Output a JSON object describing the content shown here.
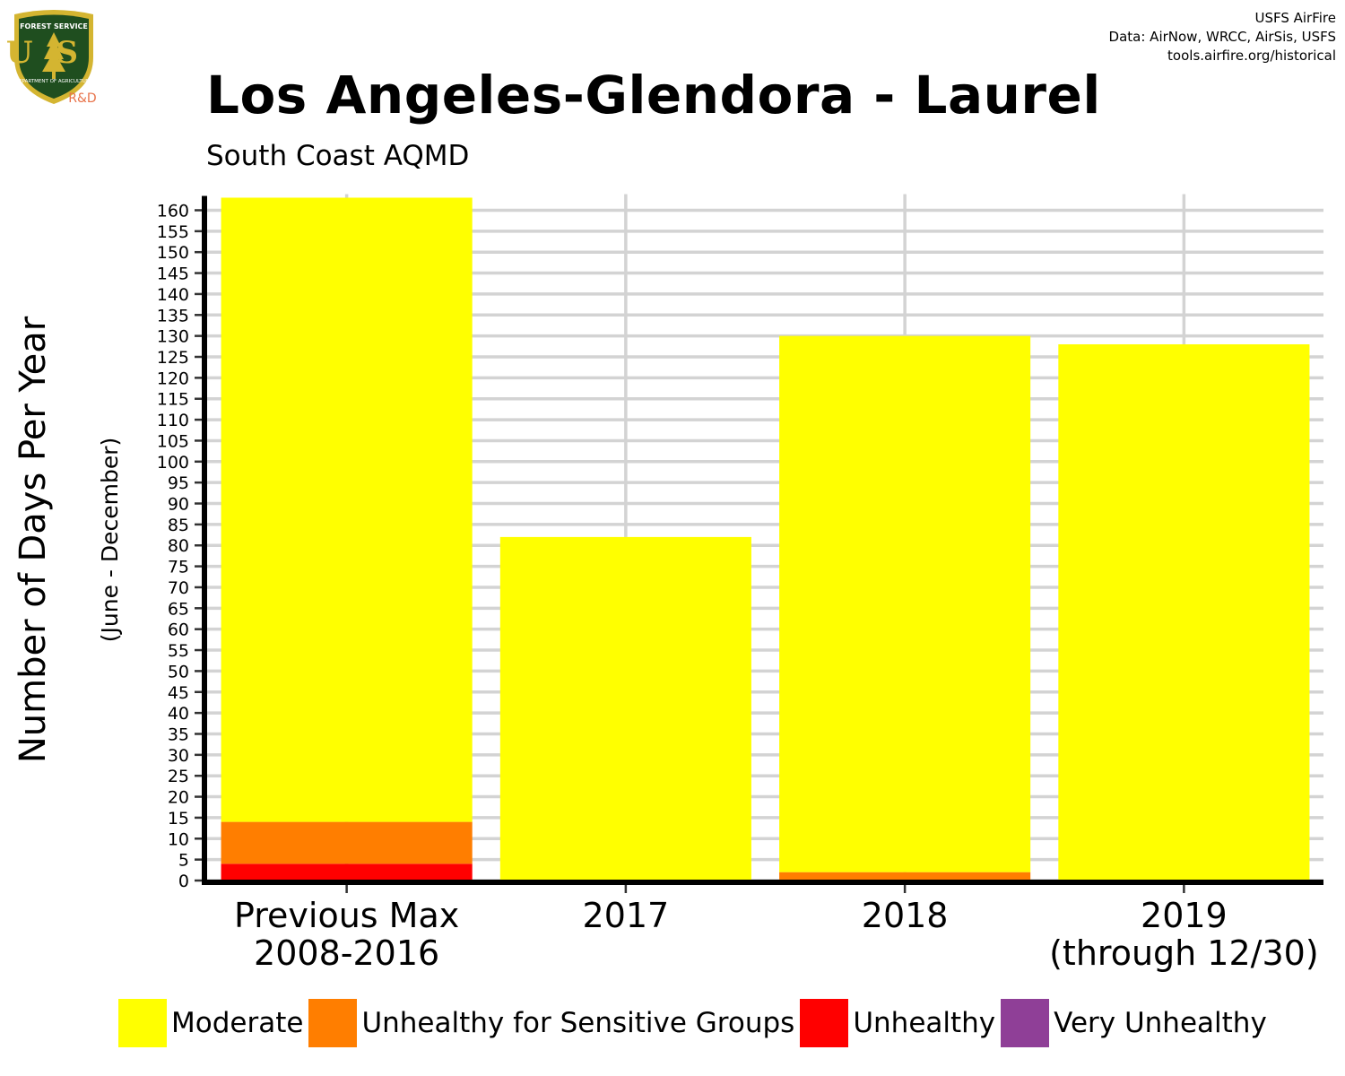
{
  "logo": {
    "top_text": "FOREST SERVICE",
    "initials": "US",
    "bottom_text": "DEPARTMENT OF AGRICULTURE",
    "badge": "R&D"
  },
  "credits": [
    "USFS AirFire",
    "Data: AirNow, WRCC, AirSis, USFS",
    "tools.airfire.org/historical"
  ],
  "title": "Los Angeles-Glendora - Laurel",
  "subtitle": "South Coast AQMD",
  "colors": {
    "Moderate": "#ffff00",
    "Unhealthy for Sensitive Groups": "#ff7e00",
    "Unhealthy": "#ff0000",
    "Very Unhealthy": "#8f3f97",
    "grid": "#d3d3d3",
    "logo_green": "#1f4e1f",
    "logo_gold": "#d4b531",
    "badge": "#e8734a"
  },
  "chart_data": {
    "type": "bar",
    "stacked": true,
    "title": "Los Angeles-Glendora - Laurel",
    "subtitle": "South Coast AQMD",
    "ylabel": "Number of Days Per Year",
    "ylabel_sub": "(June - December)",
    "categories": [
      [
        "Previous Max",
        "2008-2016"
      ],
      [
        "2017"
      ],
      [
        "2018"
      ],
      [
        "2019",
        "(through 12/30)"
      ]
    ],
    "series": [
      {
        "name": "Unhealthy",
        "values": [
          4,
          0,
          0,
          0
        ]
      },
      {
        "name": "Unhealthy for Sensitive Groups",
        "values": [
          10,
          0,
          2,
          0
        ]
      },
      {
        "name": "Moderate",
        "values": [
          149,
          82,
          128,
          128
        ]
      },
      {
        "name": "Very Unhealthy",
        "values": [
          0,
          0,
          0,
          0
        ]
      }
    ],
    "ylim": [
      0,
      163
    ],
    "yticks": [
      0,
      5,
      10,
      15,
      20,
      25,
      30,
      35,
      40,
      45,
      50,
      55,
      60,
      65,
      70,
      75,
      80,
      85,
      90,
      95,
      100,
      105,
      110,
      115,
      120,
      125,
      130,
      135,
      140,
      145,
      150,
      155,
      160
    ],
    "grid": true,
    "legend": {
      "position": "bottom",
      "entries": [
        "Moderate",
        "Unhealthy for Sensitive Groups",
        "Unhealthy",
        "Very Unhealthy"
      ]
    }
  }
}
